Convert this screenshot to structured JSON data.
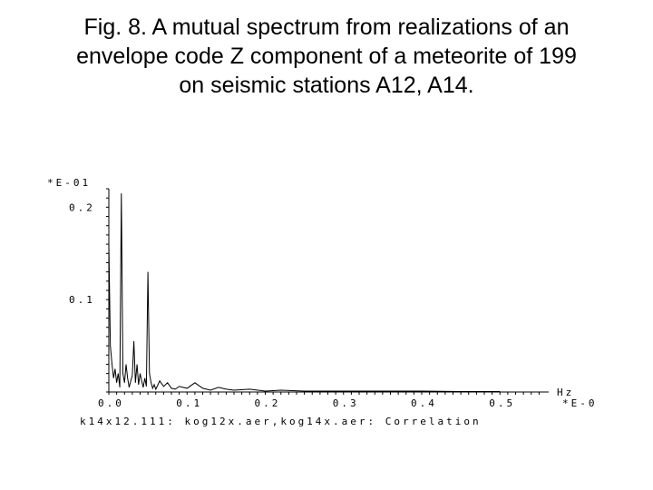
{
  "caption": {
    "line1": "Fig. 8. A mutual spectrum from realizations of an",
    "line2": "envelope code  Z  component of a meteorite of 199",
    "line3": "on seismic stations A12, A14."
  },
  "chart_data": {
    "type": "line",
    "title": "",
    "y_multiplier_label": "*E-01",
    "x_multiplier_label": "*E-0",
    "xlabel": "Hz",
    "footer": "k14x12.111: kog12x.aer,kog14x.aer: Correlation",
    "xlim": [
      0.0,
      0.56
    ],
    "ylim": [
      0.0,
      0.22
    ],
    "x_ticks": [
      "0.0",
      "0.1",
      "0.2",
      "0.3",
      "0.4",
      "0.5"
    ],
    "y_ticks": [
      "0.1",
      "0.2"
    ],
    "grid": false,
    "series": [
      {
        "x": [
          0.0,
          0.002,
          0.004,
          0.006,
          0.008,
          0.01,
          0.012,
          0.014,
          0.016,
          0.018,
          0.02,
          0.022,
          0.024,
          0.026,
          0.028,
          0.03,
          0.032,
          0.034,
          0.036,
          0.038,
          0.04,
          0.042,
          0.044,
          0.046,
          0.048,
          0.05,
          0.052,
          0.054,
          0.056,
          0.058,
          0.06,
          0.065,
          0.07,
          0.075,
          0.08,
          0.085,
          0.09,
          0.1,
          0.11,
          0.12,
          0.13,
          0.14,
          0.15,
          0.16,
          0.18,
          0.2,
          0.22,
          0.25,
          0.3,
          0.35,
          0.4,
          0.45,
          0.5
        ],
        "y": [
          0.16,
          0.05,
          0.03,
          0.015,
          0.025,
          0.01,
          0.02,
          0.005,
          0.215,
          0.02,
          0.01,
          0.03,
          0.015,
          0.005,
          0.012,
          0.018,
          0.055,
          0.01,
          0.03,
          0.008,
          0.02,
          0.012,
          0.005,
          0.015,
          0.006,
          0.13,
          0.02,
          0.01,
          0.004,
          0.008,
          0.003,
          0.012,
          0.006,
          0.01,
          0.004,
          0.003,
          0.006,
          0.004,
          0.01,
          0.004,
          0.002,
          0.005,
          0.003,
          0.002,
          0.003,
          0.001,
          0.002,
          0.001,
          0.001,
          0.001,
          0.001,
          0.0005,
          0.0005
        ]
      }
    ]
  }
}
